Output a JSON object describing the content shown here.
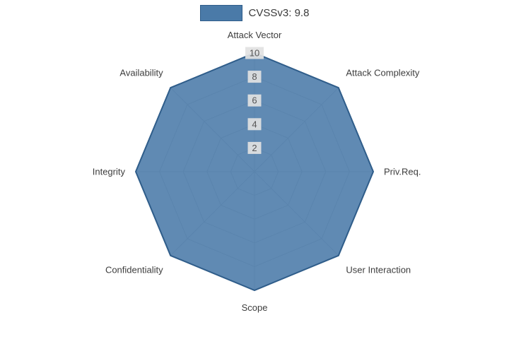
{
  "legend": {
    "label": "CVSSv3: 9.8"
  },
  "chart_data": {
    "type": "radar",
    "axes": [
      "Attack Vector",
      "Attack Complexity",
      "Priv.Req.",
      "User Interaction",
      "Scope",
      "Confidentiality",
      "Integrity",
      "Availability"
    ],
    "series": [
      {
        "name": "CVSSv3: 9.8",
        "values": [
          10,
          10,
          10,
          10,
          10,
          10,
          10,
          10
        ]
      }
    ],
    "ticks": [
      2,
      4,
      6,
      8,
      10
    ],
    "range": [
      0,
      10
    ],
    "grid": true,
    "legend_position": "top",
    "colors": {
      "fill": "#4a7aa8",
      "line": "#2f5d8a",
      "grid": "#c9c9c9",
      "tick_bg": "#e2e2e2",
      "tick_text": "#555555",
      "axis_text": "#3d3d3d"
    }
  }
}
